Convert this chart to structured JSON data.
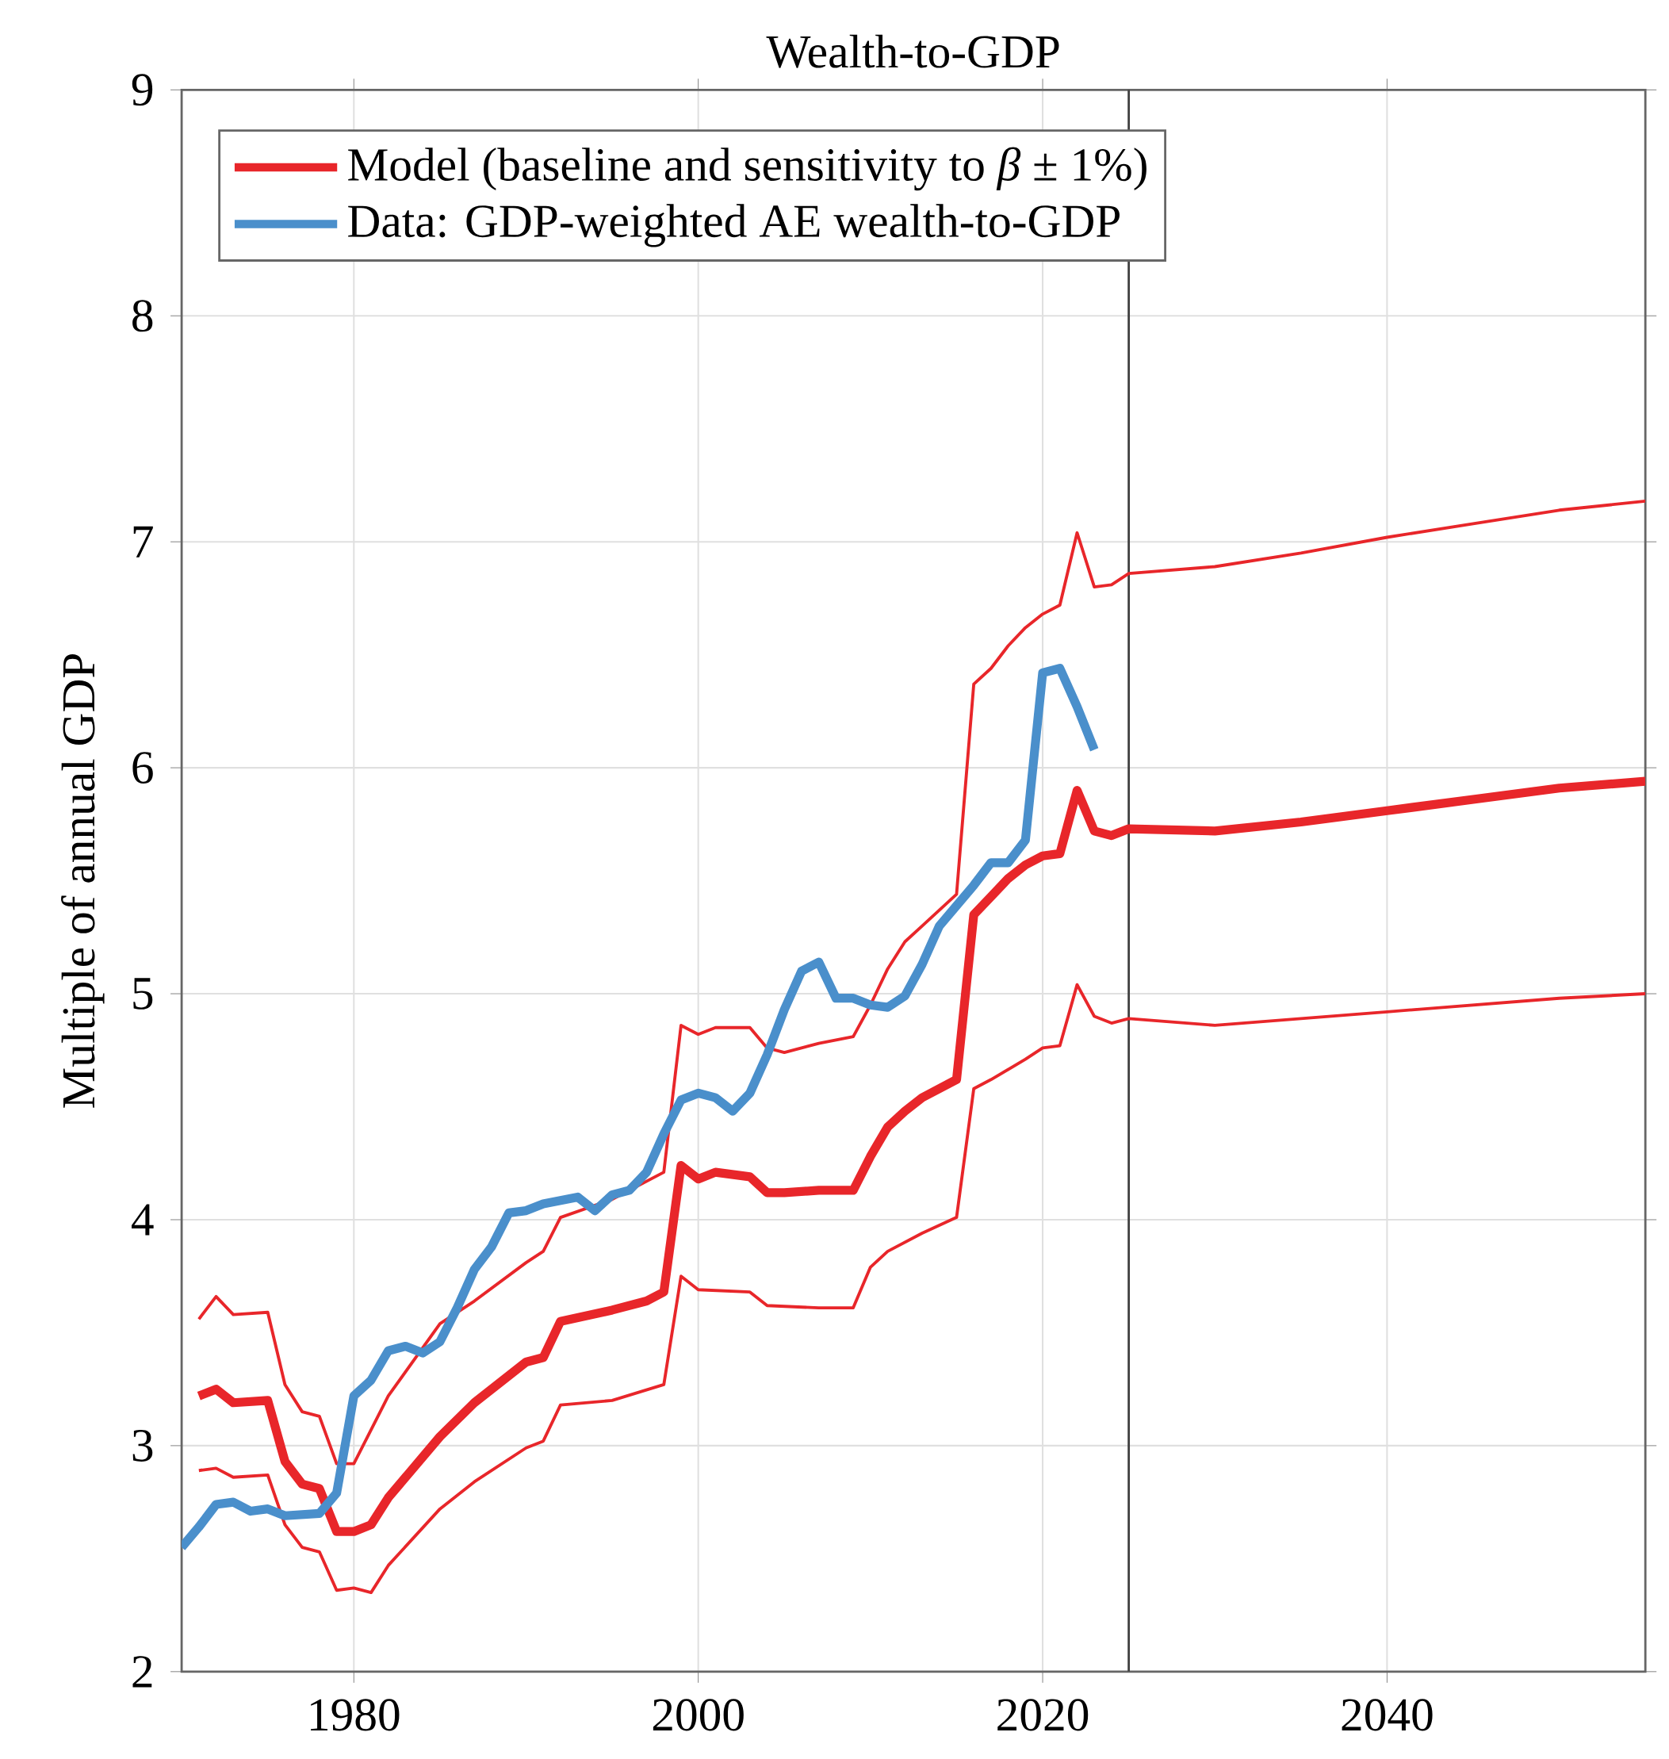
{
  "chart_data": {
    "type": "line",
    "title": "Wealth-to-GDP",
    "ylabel": "Multiple of annual GDP",
    "xlim": [
      1970,
      2055
    ],
    "ylim": [
      2,
      9
    ],
    "xticks": [
      1980,
      2000,
      2020,
      2040
    ],
    "yticks": [
      2,
      3,
      4,
      5,
      6,
      7,
      8,
      9
    ],
    "grid": true,
    "legend": "top left",
    "line_style": "solid",
    "marker": "none",
    "ref_lines": [
      {
        "axis": "x",
        "value": 2025,
        "color": "#404040"
      }
    ],
    "series": [
      {
        "name": "Model (baseline and sensitivity to *β* ± 1%)",
        "color": "#e8262a",
        "x": [
          1971,
          1972,
          1973,
          1975,
          1976,
          1977,
          1978,
          1979,
          1980,
          1981,
          1982,
          1985,
          1987,
          1990,
          1991,
          1992,
          1995,
          1997,
          1998,
          1999,
          2000,
          2001,
          2003,
          2004,
          2005,
          2007,
          2009,
          2010,
          2011,
          2012,
          2013,
          2015,
          2016,
          2017,
          2018,
          2019,
          2020,
          2021,
          2022,
          2023,
          2024,
          2025,
          2030,
          2035,
          2040,
          2045,
          2050,
          2055
        ],
        "values": [
          3.22,
          3.25,
          3.19,
          3.2,
          2.93,
          2.83,
          2.81,
          2.62,
          2.62,
          2.65,
          2.77,
          3.04,
          3.19,
          3.37,
          3.39,
          3.55,
          3.6,
          3.64,
          3.68,
          4.24,
          4.18,
          4.21,
          4.19,
          4.12,
          4.12,
          4.13,
          4.13,
          4.28,
          4.41,
          4.48,
          4.54,
          4.62,
          5.35,
          5.43,
          5.51,
          5.57,
          5.61,
          5.62,
          5.9,
          5.72,
          5.7,
          5.73,
          5.72,
          5.76,
          5.81,
          5.86,
          5.91,
          5.94
        ]
      },
      {
        "color": "#e8262a",
        "x": [
          1971,
          1972,
          1973,
          1975,
          1976,
          1977,
          1978,
          1979,
          1980,
          1982,
          1985,
          1987,
          1990,
          1991,
          1992,
          1995,
          1998,
          1999,
          2000,
          2001,
          2003,
          2004,
          2005,
          2007,
          2009,
          2010,
          2011,
          2012,
          2013,
          2015,
          2016,
          2017,
          2018,
          2019,
          2020,
          2021,
          2022,
          2023,
          2024,
          2025,
          2030,
          2035,
          2040,
          2045,
          2050,
          2055
        ],
        "values": [
          3.56,
          3.66,
          3.58,
          3.59,
          3.27,
          3.15,
          3.13,
          2.92,
          2.92,
          3.22,
          3.54,
          3.64,
          3.81,
          3.86,
          4.01,
          4.09,
          4.21,
          4.86,
          4.82,
          4.85,
          4.85,
          4.76,
          4.74,
          4.78,
          4.81,
          4.95,
          5.11,
          5.23,
          5.3,
          5.44,
          6.37,
          6.44,
          6.54,
          6.62,
          6.68,
          6.72,
          7.04,
          6.8,
          6.81,
          6.86,
          6.89,
          6.95,
          7.02,
          7.08,
          7.14,
          7.18
        ]
      },
      {
        "color": "#e8262a",
        "x": [
          1971,
          1972,
          1973,
          1975,
          1976,
          1977,
          1978,
          1979,
          1980,
          1981,
          1982,
          1985,
          1987,
          1990,
          1991,
          1992,
          1995,
          1998,
          1999,
          2000,
          2003,
          2004,
          2007,
          2009,
          2010,
          2011,
          2013,
          2015,
          2016,
          2017,
          2019,
          2020,
          2021,
          2022,
          2023,
          2024,
          2025,
          2030,
          2040,
          2050,
          2055
        ],
        "values": [
          2.89,
          2.9,
          2.86,
          2.87,
          2.65,
          2.55,
          2.53,
          2.36,
          2.37,
          2.35,
          2.47,
          2.72,
          2.84,
          2.99,
          3.02,
          3.18,
          3.2,
          3.27,
          3.75,
          3.69,
          3.68,
          3.62,
          3.61,
          3.61,
          3.79,
          3.86,
          3.94,
          4.01,
          4.58,
          4.62,
          4.71,
          4.76,
          4.77,
          5.04,
          4.9,
          4.87,
          4.89,
          4.86,
          4.92,
          4.98,
          5.0
        ]
      },
      {
        "name": "Data: GDP-weighted AE wealth-to-GDP",
        "color": "#4a8fcb",
        "x": [
          1970,
          1971,
          1972,
          1973,
          1974,
          1975,
          1976,
          1978,
          1979,
          1980,
          1981,
          1982,
          1983,
          1984,
          1985,
          1986,
          1987,
          1988,
          1989,
          1990,
          1991,
          1993,
          1994,
          1995,
          1996,
          1997,
          1998,
          1999,
          2000,
          2001,
          2002,
          2003,
          2004,
          2005,
          2006,
          2007,
          2008,
          2009,
          2010,
          2011,
          2012,
          2013,
          2014,
          2015,
          2016,
          2017,
          2018,
          2019,
          2020,
          2021,
          2022,
          2023
        ],
        "values": [
          2.55,
          2.64,
          2.74,
          2.75,
          2.71,
          2.72,
          2.69,
          2.7,
          2.79,
          3.22,
          3.29,
          3.42,
          3.44,
          3.41,
          3.46,
          3.61,
          3.78,
          3.88,
          4.03,
          4.04,
          4.07,
          4.1,
          4.04,
          4.11,
          4.13,
          4.21,
          4.38,
          4.53,
          4.56,
          4.54,
          4.48,
          4.56,
          4.73,
          4.93,
          5.1,
          5.14,
          4.98,
          4.98,
          4.95,
          4.94,
          4.99,
          5.13,
          5.3,
          5.39,
          5.48,
          5.58,
          5.58,
          5.68,
          6.42,
          6.44,
          6.27,
          6.08
        ]
      }
    ]
  }
}
